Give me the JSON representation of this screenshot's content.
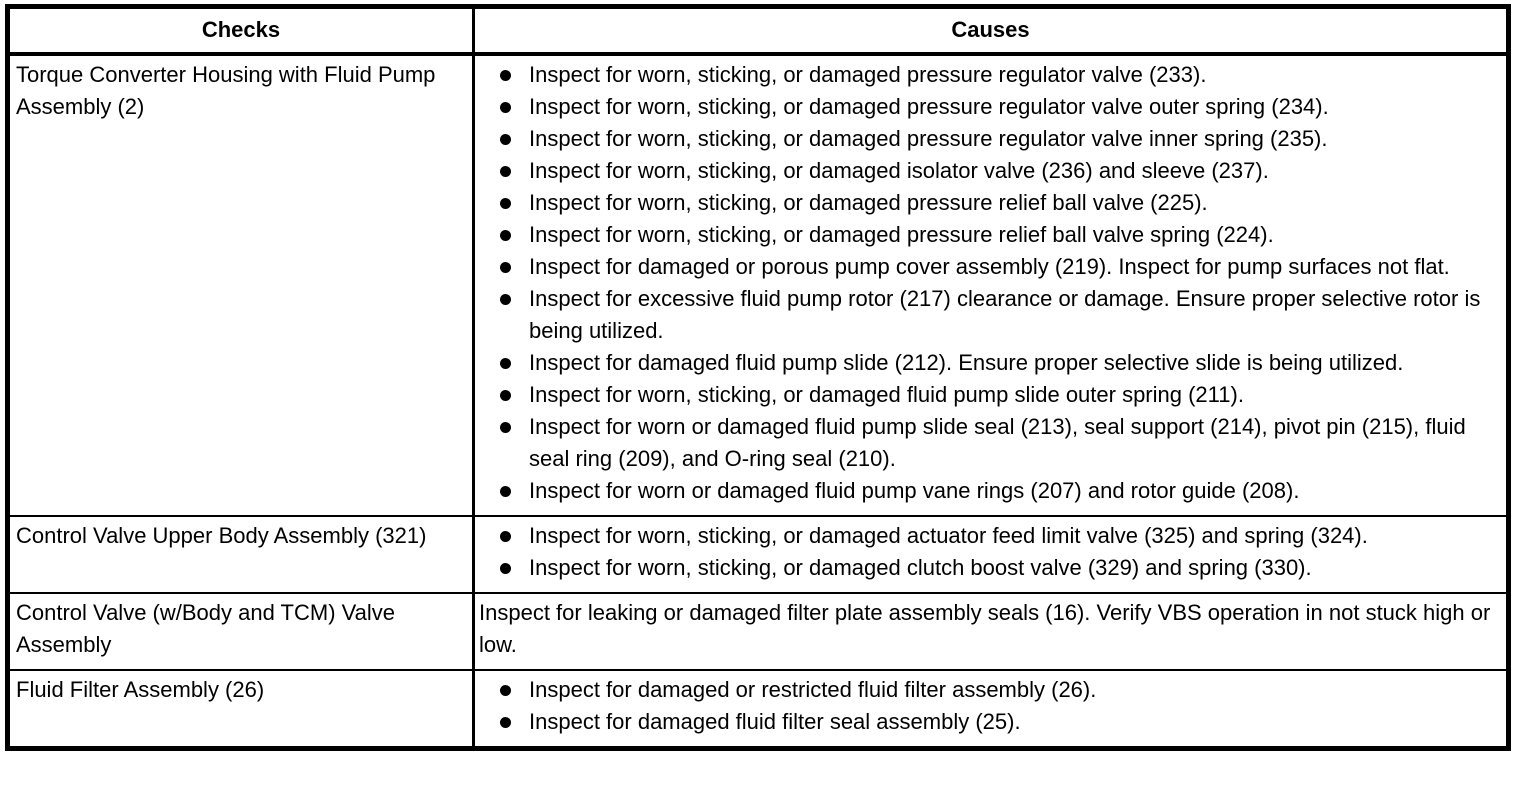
{
  "table": {
    "header": {
      "checks": "Checks",
      "causes": "Causes"
    },
    "colors": {
      "text": "#000000",
      "border": "#000000",
      "background": "#ffffff"
    },
    "rows": [
      {
        "check": "Torque Converter Housing with Fluid Pump Assembly (2)",
        "causes_style": "bullets",
        "causes": [
          "Inspect for worn, sticking, or damaged pressure regulator valve (233).",
          "Inspect for worn, sticking, or damaged pressure regulator valve outer spring (234).",
          "Inspect for worn, sticking, or damaged pressure regulator valve inner spring (235).",
          "Inspect for worn, sticking, or damaged isolator valve (236) and sleeve (237).",
          "Inspect for worn, sticking, or damaged pressure relief ball valve (225).",
          "Inspect for worn, sticking, or damaged pressure relief ball valve spring (224).",
          "Inspect for damaged or porous pump cover assembly (219). Inspect for pump surfaces not flat.",
          "Inspect for excessive fluid pump rotor (217) clearance or damage. Ensure proper selective rotor is being utilized.",
          "Inspect for damaged fluid pump slide (212). Ensure proper selective slide is being utilized.",
          "Inspect for worn, sticking, or damaged fluid pump slide outer spring (211).",
          "Inspect for worn or damaged fluid pump slide seal (213), seal support (214), pivot pin (215), fluid seal ring (209), and O-ring seal (210).",
          "Inspect for worn or damaged fluid pump vane rings (207) and rotor guide (208)."
        ]
      },
      {
        "check": "Control Valve Upper Body Assembly (321)",
        "causes_style": "bullets",
        "causes": [
          "Inspect for worn, sticking, or damaged actuator feed limit valve (325) and spring (324).",
          "Inspect for worn, sticking, or damaged clutch boost valve (329) and spring (330)."
        ]
      },
      {
        "check": "Control Valve (w/Body and TCM) Valve Assembly",
        "causes_style": "plain",
        "causes": [
          "Inspect for leaking or damaged filter plate assembly seals (16). Verify VBS operation in not stuck high or low."
        ]
      },
      {
        "check": "Fluid Filter Assembly (26)",
        "causes_style": "bullets",
        "causes": [
          "Inspect for damaged or restricted fluid filter assembly (26).",
          "Inspect for damaged fluid filter seal assembly (25)."
        ]
      }
    ]
  }
}
